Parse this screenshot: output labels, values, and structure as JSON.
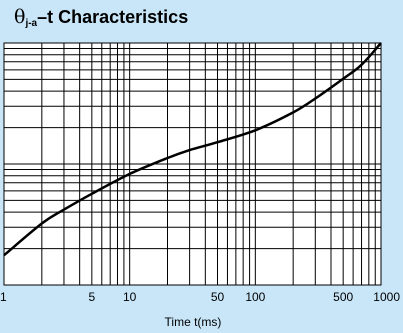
{
  "chart_data": {
    "type": "line",
    "title": {
      "symbol": "θ",
      "subscript": "j-a",
      "suffix": "–t Characteristics"
    },
    "xlabel": "Time t(ms)",
    "ylabel": "",
    "x_scale": "log",
    "xlim": [
      1,
      1000
    ],
    "grid": true,
    "x_tick_labels": [
      {
        "value": 1,
        "label": "1"
      },
      {
        "value": 5,
        "label": "5"
      },
      {
        "value": 10,
        "label": "10"
      },
      {
        "value": 50,
        "label": "50"
      },
      {
        "value": 100,
        "label": "100"
      },
      {
        "value": 500,
        "label": "500"
      },
      {
        "value": 1000,
        "label": "1000"
      }
    ],
    "series": [
      {
        "x": [
          1,
          2,
          3,
          5,
          10,
          20,
          30,
          50,
          100,
          200,
          300,
          500,
          700,
          1000
        ],
        "y": [
          0.15,
          0.31,
          0.38,
          0.46,
          0.56,
          0.64,
          0.68,
          0.72,
          0.78,
          0.87,
          0.94,
          1.04,
          1.11,
          1.22
        ]
      }
    ]
  },
  "colors": {
    "background": "#c8e6f8",
    "plot_area": "#ffffff",
    "grid": "#000000",
    "curve": "#000000"
  }
}
